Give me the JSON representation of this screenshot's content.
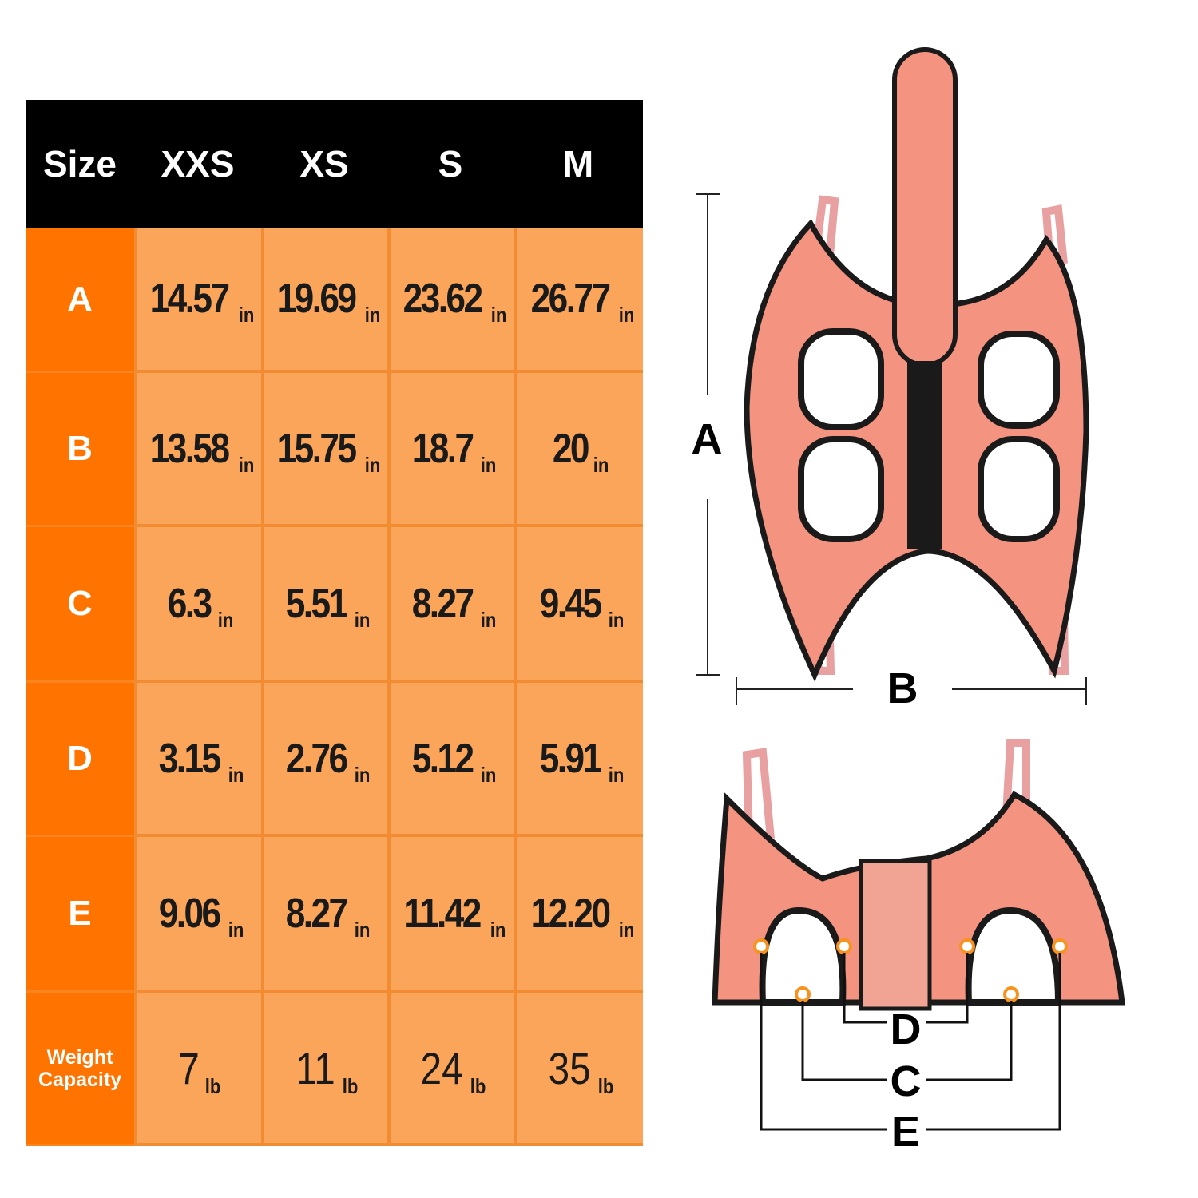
{
  "table": {
    "headers": [
      "Size",
      "XXS",
      "XS",
      "S",
      "M"
    ],
    "rows": [
      {
        "label": "A",
        "unit": "in",
        "values": [
          "14.57",
          "19.69",
          "23.62",
          "26.77"
        ]
      },
      {
        "label": "B",
        "unit": "in",
        "values": [
          "13.58",
          "15.75",
          "18.7",
          "20"
        ]
      },
      {
        "label": "C",
        "unit": "in",
        "values": [
          "6.3",
          "5.51",
          "8.27",
          "9.45"
        ]
      },
      {
        "label": "D",
        "unit": "in",
        "values": [
          "3.15",
          "2.76",
          "5.12",
          "5.91"
        ]
      },
      {
        "label": "E",
        "unit": "in",
        "values": [
          "9.06",
          "8.27",
          "11.42",
          "12.20"
        ]
      },
      {
        "label": "Weight Capacity",
        "unit": "lb",
        "values": [
          "7",
          "11",
          "24",
          "35"
        ]
      }
    ]
  },
  "diagram": {
    "labels": {
      "a": "A",
      "b": "B",
      "c": "C",
      "d": "D",
      "e": "E"
    }
  },
  "colors": {
    "header_bg": "#000000",
    "label_col": "#ff7300",
    "cell_bg": "#fba55a",
    "harness": "#f4937f",
    "marker": "#f7931e"
  }
}
